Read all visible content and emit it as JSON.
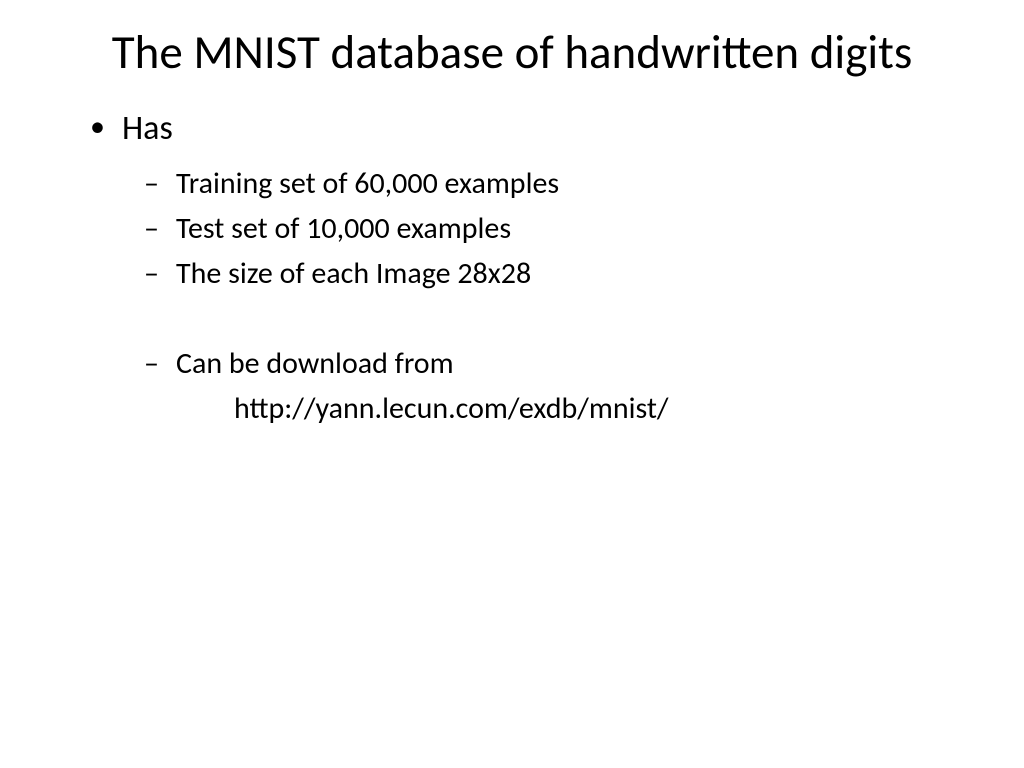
{
  "title": "The MNIST database of handwritten digits",
  "bullets": {
    "level1_item": "Has",
    "level2_items": [
      "Training set of 60,000 examples",
      "Test set of 10,000 examples",
      "The size of each Image 28x28"
    ],
    "download_label": "Can be download from",
    "download_url": "http://yann.lecun.com/exdb/mnist/"
  },
  "styling": {
    "background_color": "#ffffff",
    "text_color": "#000000",
    "title_fontsize": 47,
    "level1_fontsize": 34,
    "level2_fontsize": 30,
    "font_family": "Calibri"
  }
}
